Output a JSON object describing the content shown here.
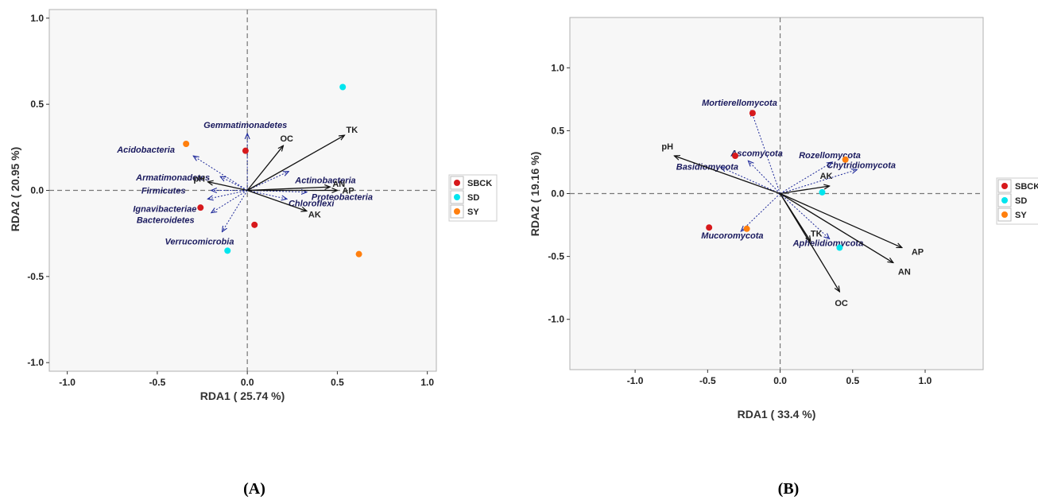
{
  "chart_data": [
    {
      "type": "scatter",
      "panel_label": "(A)",
      "xlabel": "RDA1 ( 25.74 %)",
      "ylabel": "RDA2 ( 20.95 %)",
      "xlim": [
        -1.1,
        1.05
      ],
      "ylim": [
        -1.05,
        1.05
      ],
      "xticks": [
        "-1.0",
        "-0.5",
        "0.0",
        "0.5",
        "1.0"
      ],
      "yticks": [
        "1.0",
        "0.5",
        "0.0",
        "-0.5",
        "-1.0"
      ],
      "xtick_values": [
        -1.0,
        -0.5,
        0.0,
        0.5,
        1.0
      ],
      "ytick_values": [
        1.0,
        0.5,
        0.0,
        -0.5,
        -1.0
      ],
      "legend": [
        {
          "name": "SBCK",
          "color": "#d7191c"
        },
        {
          "name": "SD",
          "color": "#00e5ee"
        },
        {
          "name": "SY",
          "color": "#ff7f0e"
        }
      ],
      "points": [
        {
          "group": "SBCK",
          "x": -0.01,
          "y": 0.23
        },
        {
          "group": "SBCK",
          "x": -0.26,
          "y": -0.1
        },
        {
          "group": "SBCK",
          "x": 0.04,
          "y": -0.2
        },
        {
          "group": "SD",
          "x": 0.53,
          "y": 0.6
        },
        {
          "group": "SD",
          "x": -0.11,
          "y": -0.35
        },
        {
          "group": "SY",
          "x": -0.34,
          "y": 0.27
        },
        {
          "group": "SY",
          "x": 0.62,
          "y": -0.37
        }
      ],
      "env_vectors": [
        {
          "label": "TK",
          "x": 0.54,
          "y": 0.32
        },
        {
          "label": "OC",
          "x": 0.2,
          "y": 0.26
        },
        {
          "label": "AN",
          "x": 0.46,
          "y": 0.02
        },
        {
          "label": "AP",
          "x": 0.5,
          "y": 0.0
        },
        {
          "label": "AK",
          "x": 0.33,
          "y": -0.12
        },
        {
          "label": "pH",
          "x": -0.22,
          "y": 0.05
        }
      ],
      "species_vectors": [
        {
          "label": "Gemmatimonadetes",
          "x": 0.0,
          "y": 0.33
        },
        {
          "label": "Acidobacteria",
          "x": -0.3,
          "y": 0.2
        },
        {
          "label": "Armatimonadetes",
          "x": -0.15,
          "y": 0.08
        },
        {
          "label": "Actinobacteria",
          "x": 0.23,
          "y": 0.11
        },
        {
          "label": "Proteobacteria",
          "x": 0.33,
          "y": -0.01
        },
        {
          "label": "Chloroflexi",
          "x": 0.22,
          "y": -0.05
        },
        {
          "label": "Firmicutes",
          "x": -0.2,
          "y": 0.0
        },
        {
          "label": "Ignavibacteriae",
          "x": -0.22,
          "y": -0.05
        },
        {
          "label": "Bacteroidetes",
          "x": -0.2,
          "y": -0.13
        },
        {
          "label": "Verrucomicrobia",
          "x": -0.14,
          "y": -0.24
        }
      ]
    },
    {
      "type": "scatter",
      "panel_label": "(B)",
      "xlabel": "RDA1 ( 33.4 %)",
      "ylabel": "RDA2 ( 19.16 %)",
      "xlim": [
        -1.45,
        1.4
      ],
      "ylim": [
        -1.4,
        1.4
      ],
      "xticks": [
        "-1.0",
        "-0.5",
        "0.0",
        "0.5",
        "1.0"
      ],
      "yticks": [
        "1.0",
        "0.5",
        "0.0",
        "-0.5",
        "-1.0"
      ],
      "xtick_values": [
        -1.0,
        -0.5,
        0.0,
        0.5,
        1.0
      ],
      "ytick_values": [
        1.0,
        0.5,
        0.0,
        -0.5,
        -1.0
      ],
      "legend": [
        {
          "name": "SBCK",
          "color": "#d7191c"
        },
        {
          "name": "SD",
          "color": "#00e5ee"
        },
        {
          "name": "SY",
          "color": "#ff7f0e"
        }
      ],
      "points": [
        {
          "group": "SBCK",
          "x": -0.19,
          "y": 0.64
        },
        {
          "group": "SBCK",
          "x": -0.31,
          "y": 0.3
        },
        {
          "group": "SBCK",
          "x": -0.49,
          "y": -0.27
        },
        {
          "group": "SD",
          "x": 0.29,
          "y": 0.01
        },
        {
          "group": "SD",
          "x": 0.41,
          "y": -0.43
        },
        {
          "group": "SY",
          "x": 0.45,
          "y": 0.27
        },
        {
          "group": "SY",
          "x": -0.23,
          "y": -0.28
        }
      ],
      "env_vectors": [
        {
          "label": "pH",
          "x": -0.73,
          "y": 0.3
        },
        {
          "label": "AK",
          "x": 0.34,
          "y": 0.06
        },
        {
          "label": "AP",
          "x": 0.84,
          "y": -0.43
        },
        {
          "label": "AN",
          "x": 0.78,
          "y": -0.55
        },
        {
          "label": "OC",
          "x": 0.41,
          "y": -0.78
        },
        {
          "label": "TK",
          "x": 0.21,
          "y": -0.38
        }
      ],
      "species_vectors": [
        {
          "label": "Mortierellomycota",
          "x": -0.2,
          "y": 0.66
        },
        {
          "label": "Ascomycota",
          "x": -0.22,
          "y": 0.26
        },
        {
          "label": "Basidiomycota",
          "x": -0.41,
          "y": 0.21
        },
        {
          "label": "Rozellomycota",
          "x": 0.36,
          "y": 0.25
        },
        {
          "label": "Chytridiomycota",
          "x": 0.53,
          "y": 0.19
        },
        {
          "label": "Mucoromycota",
          "x": -0.27,
          "y": -0.3
        },
        {
          "label": "Aphelidiomycota",
          "x": 0.34,
          "y": -0.36
        }
      ]
    }
  ]
}
